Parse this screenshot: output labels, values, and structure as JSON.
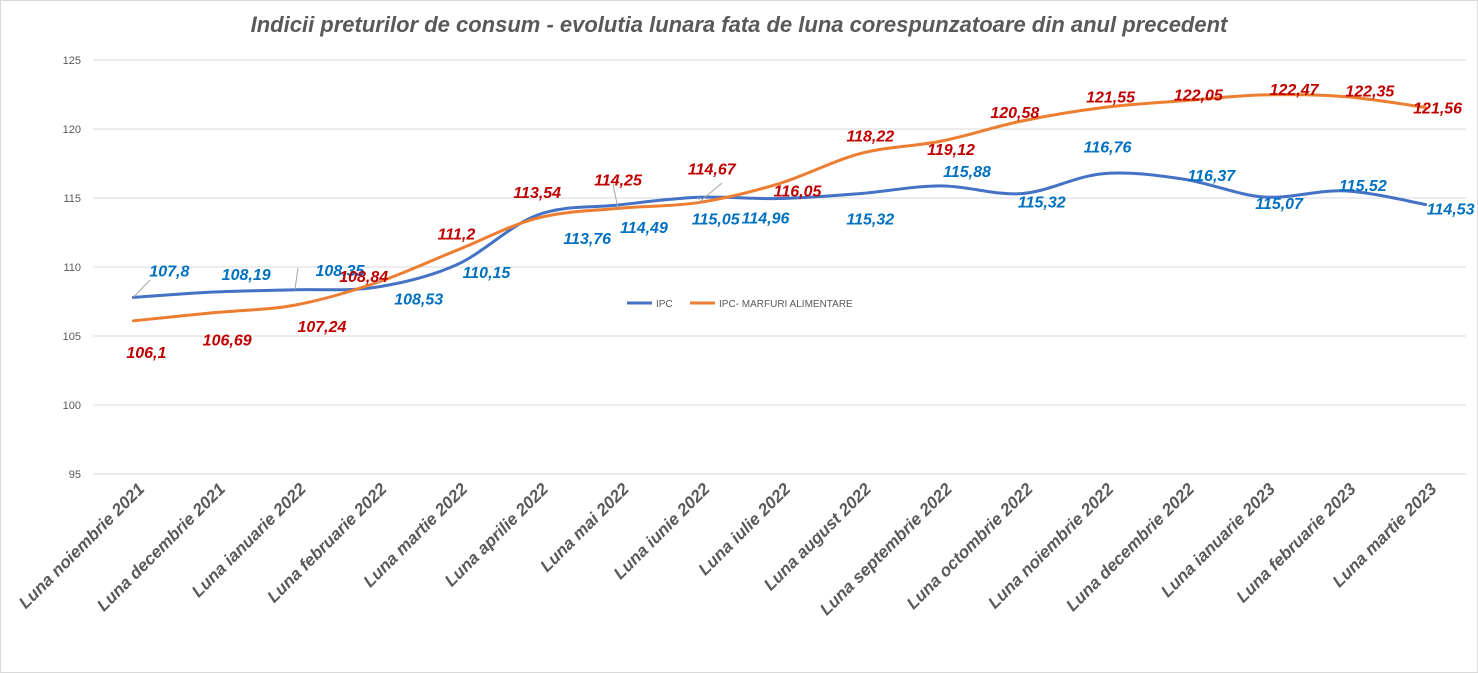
{
  "chart_data": {
    "type": "line",
    "title": "Indicii preturilor de consum - evolutia lunara fata de luna corespunzatoare din anul precedent",
    "xlabel": "",
    "ylabel": "",
    "ylim": [
      95,
      125
    ],
    "yticks": [
      95,
      100,
      105,
      110,
      115,
      120,
      125
    ],
    "ytick_labels": [
      "95",
      "100",
      "105",
      "110",
      "115",
      "120",
      "125"
    ],
    "grid": true,
    "legend_position": "center",
    "categories": [
      "Luna noiembrie 2021",
      "Luna decembrie 2021",
      "Luna ianuarie 2022",
      "Luna februarie 2022",
      "Luna martie 2022",
      "Luna aprilie 2022",
      "Luna mai 2022",
      "Luna iunie 2022",
      "Luna iulie 2022",
      "Luna august 2022",
      "Luna septembrie 2022",
      "Luna octombrie 2022",
      "Luna noiembrie 2022",
      "Luna decembrie 2022",
      "Luna ianuarie 2023",
      "Luna februarie 2023",
      "Luna martie 2023"
    ],
    "series": [
      {
        "name": "IPC",
        "color": "#4472c4",
        "label_color": "#0070c0",
        "values": [
          107.8,
          108.19,
          108.35,
          108.53,
          110.15,
          113.76,
          114.49,
          115.05,
          114.96,
          115.32,
          115.88,
          115.32,
          116.76,
          116.37,
          115.07,
          115.52,
          114.53
        ],
        "labels": [
          "107,8",
          "108,19",
          "108,35",
          "108,53",
          "110,15",
          "113,76",
          "114,49",
          "115,05",
          "114,96",
          "115,32",
          "115,88",
          "115,32",
          "116,76",
          "116,37",
          "115,07",
          "115,52",
          "114,53"
        ]
      },
      {
        "name": "IPC- MARFURI ALIMENTARE",
        "color": "#ed7d31",
        "label_color": "#c00000",
        "values": [
          106.1,
          106.69,
          107.24,
          108.84,
          111.2,
          113.54,
          114.25,
          114.67,
          116.05,
          118.22,
          119.12,
          120.58,
          121.55,
          122.05,
          122.47,
          122.35,
          121.56
        ],
        "labels": [
          "106,1",
          "106,69",
          "107,24",
          "108,84",
          "111,2",
          "113,54",
          "114,25",
          "114,67",
          "116,05",
          "118,22",
          "119,12",
          "120,58",
          "121,55",
          "122,05",
          "122,47",
          "122,35",
          "121,56"
        ]
      }
    ]
  }
}
